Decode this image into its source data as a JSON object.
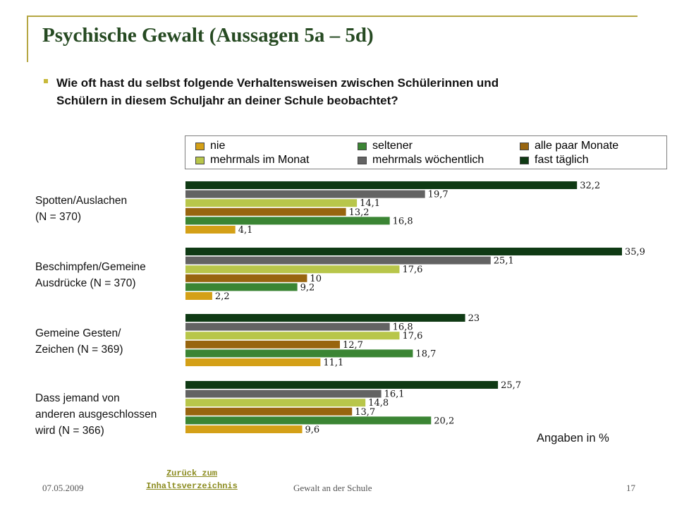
{
  "slide": {
    "title": "Psychische Gewalt (Aussagen 5a – 5d)",
    "question_line1": "Wie oft hast du selbst folgende Verhaltensweisen zwischen Schülerinnen und",
    "question_line2": "Schülern in diesem Schuljahr an deiner Schule beobachtet?",
    "unit_note": "Angaben in %",
    "accent_color": "#b5a642",
    "title_color": "#264a22"
  },
  "footer": {
    "date": "07.05.2009",
    "link_line1": "Zurück zum",
    "link_line2": "Inhaltsverzeichnis",
    "center": "Gewalt an der Schule",
    "page": "17"
  },
  "chart_data": {
    "type": "bar",
    "orientation": "horizontal",
    "categories": [
      {
        "line1": "Spotten/Auslachen",
        "line2": "(N = 370)",
        "line3": ""
      },
      {
        "line1": "Beschimpfen/Gemeine",
        "line2": "Ausdrücke  (N = 370)",
        "line3": ""
      },
      {
        "line1": "Gemeine Gesten/",
        "line2": "Zeichen  (N = 369)",
        "line3": ""
      },
      {
        "line1": "Dass jemand von",
        "line2": "anderen ausgeschlossen",
        "line3": "wird (N = 366)"
      }
    ],
    "series": [
      {
        "name": "fast täglich",
        "color": "#0f3a14",
        "values": [
          32.2,
          35.9,
          23,
          25.7
        ],
        "labels": [
          "32,2",
          "35,9",
          "23",
          "25,7"
        ]
      },
      {
        "name": "mehrmals wöchentlich",
        "color": "#636363",
        "values": [
          19.7,
          25.1,
          16.8,
          16.1
        ],
        "labels": [
          "19,7",
          "25,1",
          "16,8",
          "16,1"
        ]
      },
      {
        "name": "mehrmals im Monat",
        "color": "#b8c64a",
        "values": [
          14.1,
          17.6,
          17.6,
          14.8
        ],
        "labels": [
          "14,1",
          "17,6",
          "17,6",
          "14,8"
        ]
      },
      {
        "name": "alle paar Monate",
        "color": "#98650f",
        "values": [
          13.2,
          10,
          12.7,
          13.7
        ],
        "labels": [
          "13,2",
          "10",
          "12,7",
          "13,7"
        ]
      },
      {
        "name": "seltener",
        "color": "#3b8534",
        "values": [
          16.8,
          9.2,
          18.7,
          20.2
        ],
        "labels": [
          "16,8",
          "9,2",
          "18,7",
          "20,2"
        ]
      },
      {
        "name": "nie",
        "color": "#d4a017",
        "values": [
          4.1,
          2.2,
          11.1,
          9.6
        ],
        "labels": [
          "4,1",
          "2,2",
          "11,1",
          "9,6"
        ]
      }
    ],
    "legend": [
      {
        "name": "nie",
        "color": "#d4a017"
      },
      {
        "name": "seltener",
        "color": "#3b8534"
      },
      {
        "name": "alle paar Monate",
        "color": "#98650f"
      },
      {
        "name": "mehrmals im Monat",
        "color": "#b8c64a"
      },
      {
        "name": "mehrmals wöchentlich",
        "color": "#636363"
      },
      {
        "name": "fast täglich",
        "color": "#0f3a14"
      }
    ],
    "legend_position": "top",
    "grid": false,
    "xlim": [
      0,
      36
    ]
  }
}
